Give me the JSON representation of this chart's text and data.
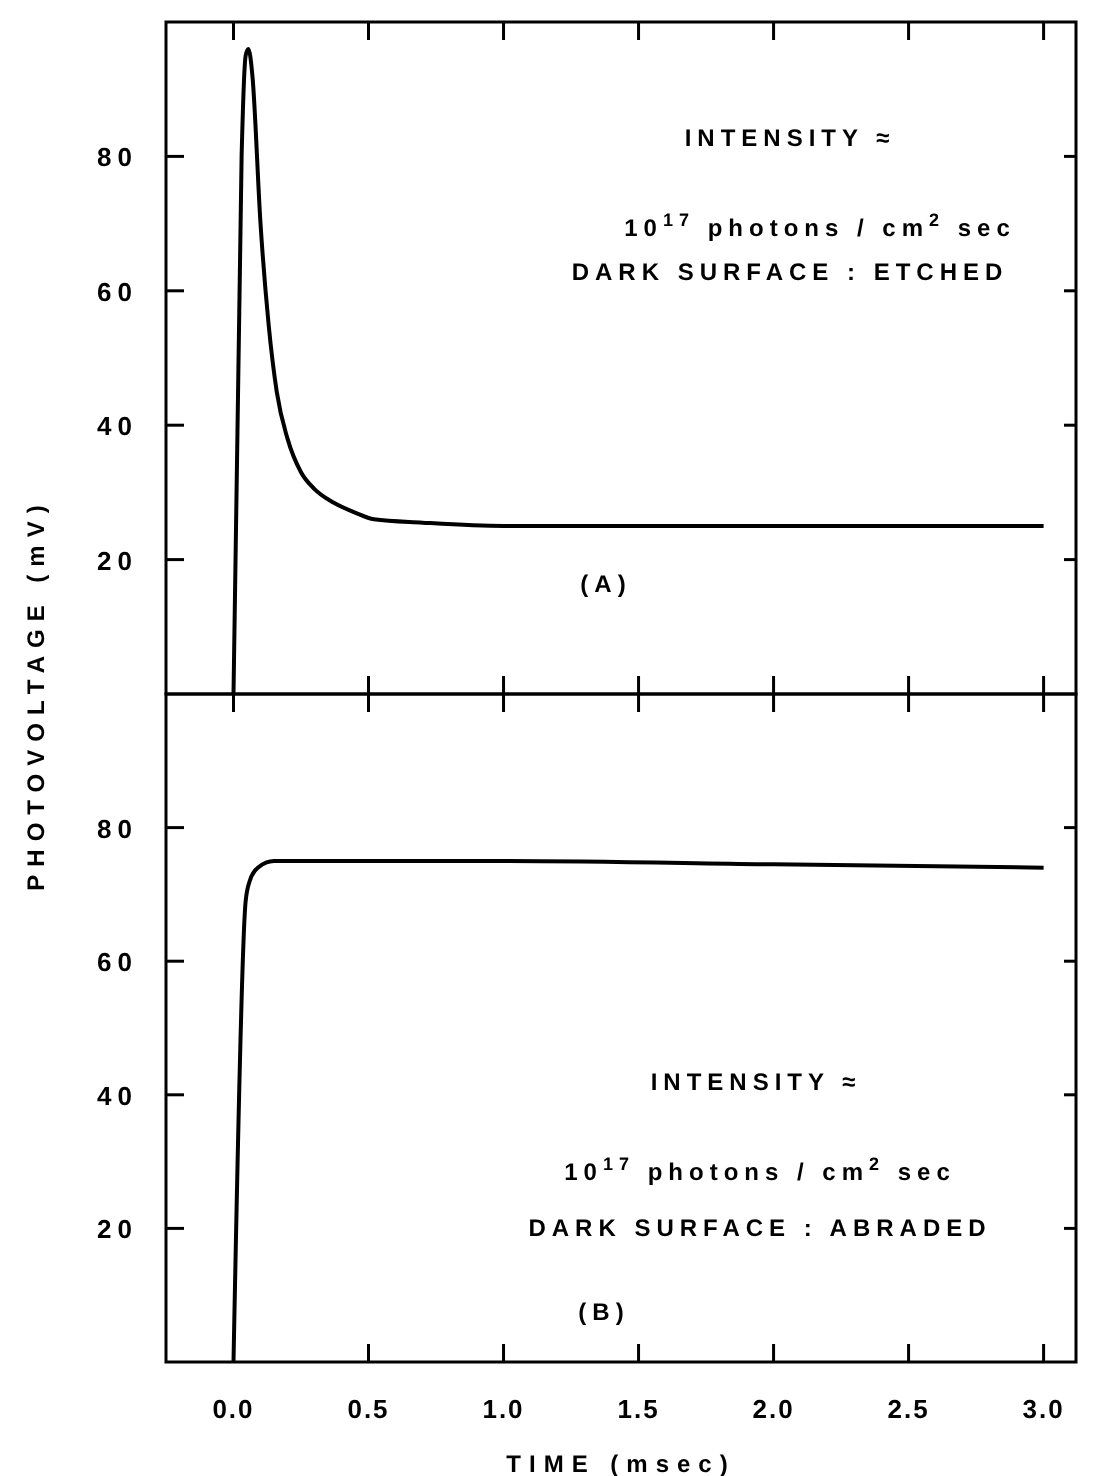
{
  "chart_data": [
    {
      "type": "line",
      "ylabel": "PHOTOVOLTAGE  (mV)",
      "xlim": [
        -0.25,
        3.12
      ],
      "xticks": [
        {
          "value": 0,
          "label": null
        },
        {
          "value": 0.5,
          "label": null
        },
        {
          "value": 1,
          "label": null
        },
        {
          "value": 1.5,
          "label": null
        },
        {
          "value": 2,
          "label": null
        },
        {
          "value": 2.5,
          "label": null
        },
        {
          "value": 3,
          "label": null
        }
      ],
      "ylim": [
        0,
        100
      ],
      "yticks": [
        20,
        40,
        60,
        80
      ],
      "tick_labels": "y",
      "grid": false,
      "annotations": [
        "INTENSITY ≈",
        "10$^{17}$ photons / cm$^{2}$ sec",
        "DARK SURFACE : ETCHED",
        "(A)"
      ],
      "series": [
        {
          "color": "#000000",
          "x": [
            0,
            0.03,
            0.045,
            0.055,
            0.07,
            0.1,
            0.13,
            0.16,
            0.2,
            0.25,
            0.3,
            0.37,
            0.45,
            0.52,
            0.7,
            1.0,
            2.0,
            3.0
          ],
          "values": [
            0,
            80,
            95,
            96,
            92,
            70,
            55,
            45,
            38,
            33,
            30.5,
            28.5,
            27,
            26,
            25.5,
            25,
            25,
            25
          ]
        }
      ]
    },
    {
      "type": "line",
      "xlabel": "TIME  (msec)",
      "xlim": [
        -0.25,
        3.12
      ],
      "xticks": [
        {
          "value": 0,
          "label": "0.0"
        },
        {
          "value": 0.5,
          "label": "0.5"
        },
        {
          "value": 1,
          "label": "1.0"
        },
        {
          "value": 1.5,
          "label": "1.5"
        },
        {
          "value": 2,
          "label": "2.0"
        },
        {
          "value": 2.5,
          "label": "2.5"
        },
        {
          "value": 3,
          "label": "3.0"
        }
      ],
      "ylim": [
        0,
        100
      ],
      "yticks": [
        20,
        40,
        60,
        80
      ],
      "grid": false,
      "annotations": [
        "INTENSITY ≈",
        "10$^{17}$ photons / cm$^{2}$ sec",
        "DARK SURFACE : ABRADED",
        "(B)"
      ],
      "series": [
        {
          "color": "#000000",
          "x": [
            0,
            0.045,
            0.06,
            0.09,
            0.15,
            0.5,
            1.0,
            2.0,
            3.0
          ],
          "values": [
            0,
            69,
            72,
            74,
            75,
            75,
            75,
            74.5,
            74
          ]
        }
      ]
    }
  ]
}
